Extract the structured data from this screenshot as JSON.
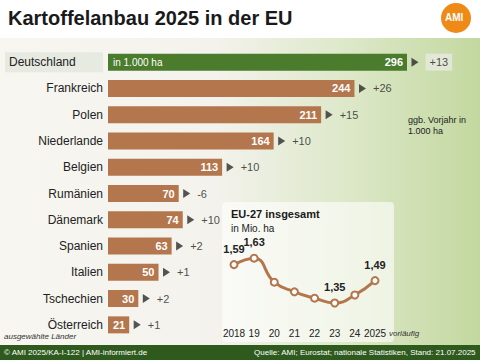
{
  "chart_data": [
    {
      "type": "bar",
      "title": "Kartoffelanbau 2025 in der EU",
      "orientation": "horizontal",
      "categories": [
        "Deutschland",
        "Frankreich",
        "Polen",
        "Niederlande",
        "Belgien",
        "Rumänien",
        "Dänemark",
        "Spanien",
        "Italien",
        "Tschechien",
        "Österreich"
      ],
      "values": [
        296,
        244,
        211,
        164,
        113,
        70,
        74,
        63,
        50,
        30,
        21
      ],
      "colors": [
        "#4b7b2c",
        "#b4764d",
        "#b4764d",
        "#b4764d",
        "#b4764d",
        "#b4764d",
        "#b4764d",
        "#b4764d",
        "#b4764d",
        "#b4764d",
        "#b4764d"
      ],
      "changes": [
        "+13",
        "+26",
        "+15",
        "+10",
        "+10",
        "-6",
        "+10",
        "+2",
        "+1",
        "+2",
        "+1"
      ],
      "xlim": [
        0,
        296
      ],
      "data_labels": true,
      "tick_labels": "y",
      "grid": false,
      "annotations": {
        "unit": "in 1.000 ha",
        "changes_note": "ggb. Vorjahr in 1.000 ha",
        "note": "ausgewählte Länder",
        "logo": "AMI",
        "copyright": "© AMI 2025/KA-I-122 | AMI-informiert.de",
        "source": "Quelle: AMI; Eurostat; nationale Statistiken, Stand: 21.07.2025"
      }
    },
    {
      "type": "line",
      "title": "EU-27 insgesamt",
      "subtitle": "in Mio. ha",
      "categories": [
        "2018",
        "19",
        "20",
        "21",
        "22",
        "23",
        "24",
        "2025"
      ],
      "values": [
        1.59,
        1.63,
        1.48,
        1.42,
        1.38,
        1.35,
        1.4,
        1.49
      ],
      "value_labels": [
        "1,59",
        "1,63",
        null,
        null,
        null,
        "1,35",
        null,
        "1,49"
      ],
      "data_labels": true,
      "ylim": [
        1.25,
        1.75
      ],
      "yticks": [],
      "tick_labels": "x",
      "grid": false,
      "color": "#b4764d",
      "marker": "circle",
      "annotations": {
        "note": "vorläufig"
      }
    }
  ]
}
